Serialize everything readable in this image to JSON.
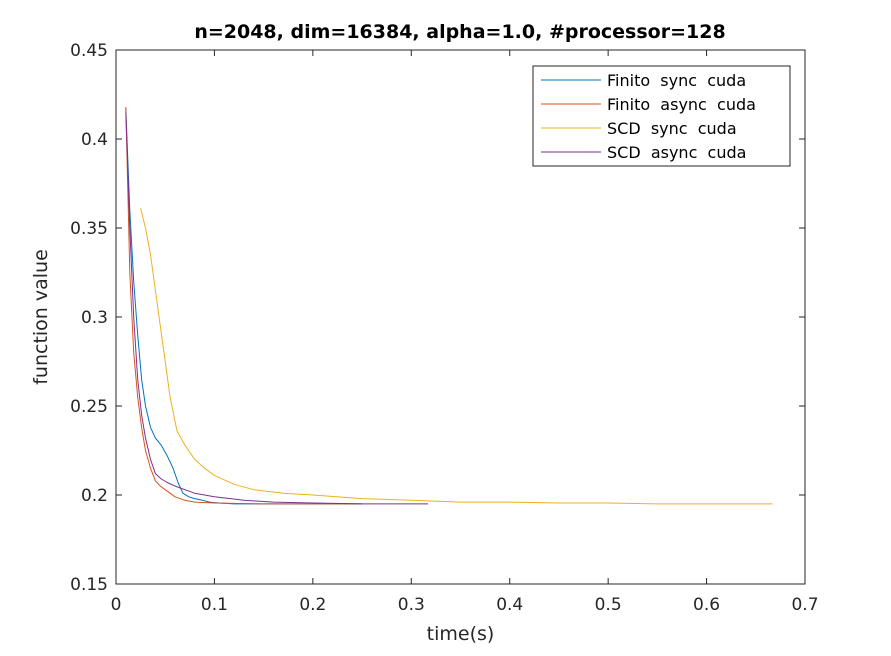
{
  "chart_data": {
    "type": "line",
    "title": "n=2048, dim=16384, alpha=1.0, #processor=128",
    "xlabel": "time(s)",
    "ylabel": "function value",
    "xlim": [
      0,
      0.7
    ],
    "ylim": [
      0.15,
      0.45
    ],
    "xticks": [
      0,
      0.1,
      0.2,
      0.3,
      0.4,
      0.5,
      0.6,
      0.7
    ],
    "xtick_labels": [
      "0",
      "0.1",
      "0.2",
      "0.3",
      "0.4",
      "0.5",
      "0.6",
      "0.7"
    ],
    "yticks": [
      0.15,
      0.2,
      0.25,
      0.3,
      0.35,
      0.4,
      0.45
    ],
    "ytick_labels": [
      "0.15",
      "0.2",
      "0.25",
      "0.3",
      "0.35",
      "0.4",
      "0.45"
    ],
    "grid": false,
    "legend_position": "top-right",
    "series": [
      {
        "name": "Finito  sync  cuda",
        "color": "#0072bd",
        "x": [
          0.01,
          0.014,
          0.018,
          0.022,
          0.026,
          0.03,
          0.035,
          0.04,
          0.046,
          0.052,
          0.058,
          0.063,
          0.068,
          0.074,
          0.08,
          0.088,
          0.095,
          0.105,
          0.12,
          0.15,
          0.2,
          0.25
        ],
        "y": [
          0.417,
          0.36,
          0.32,
          0.29,
          0.265,
          0.25,
          0.238,
          0.232,
          0.228,
          0.222,
          0.215,
          0.207,
          0.201,
          0.199,
          0.198,
          0.197,
          0.196,
          0.1955,
          0.195,
          0.195,
          0.195,
          0.195
        ]
      },
      {
        "name": "Finito  async  cuda",
        "color": "#d95319",
        "x": [
          0.01,
          0.014,
          0.018,
          0.022,
          0.026,
          0.03,
          0.035,
          0.04,
          0.045,
          0.05,
          0.06,
          0.07,
          0.08,
          0.1,
          0.15,
          0.2,
          0.25
        ],
        "y": [
          0.418,
          0.325,
          0.28,
          0.255,
          0.238,
          0.225,
          0.215,
          0.208,
          0.205,
          0.203,
          0.199,
          0.197,
          0.196,
          0.1955,
          0.195,
          0.195,
          0.195
        ]
      },
      {
        "name": "SCD  sync  cuda",
        "color": "#edb120",
        "x": [
          0.025,
          0.03,
          0.035,
          0.04,
          0.045,
          0.05,
          0.055,
          0.062,
          0.07,
          0.08,
          0.09,
          0.1,
          0.12,
          0.14,
          0.17,
          0.2,
          0.25,
          0.3,
          0.35,
          0.4,
          0.45,
          0.5,
          0.55,
          0.6,
          0.667
        ],
        "y": [
          0.361,
          0.35,
          0.335,
          0.315,
          0.295,
          0.275,
          0.255,
          0.236,
          0.228,
          0.22,
          0.215,
          0.211,
          0.206,
          0.203,
          0.201,
          0.2,
          0.198,
          0.197,
          0.196,
          0.196,
          0.1955,
          0.1955,
          0.195,
          0.195,
          0.195
        ]
      },
      {
        "name": "SCD  async  cuda",
        "color": "#7e2f8e",
        "x": [
          0.01,
          0.014,
          0.018,
          0.022,
          0.026,
          0.03,
          0.035,
          0.04,
          0.046,
          0.052,
          0.06,
          0.07,
          0.08,
          0.1,
          0.13,
          0.16,
          0.2,
          0.25,
          0.3,
          0.317
        ],
        "y": [
          0.415,
          0.35,
          0.3,
          0.265,
          0.245,
          0.232,
          0.22,
          0.212,
          0.209,
          0.207,
          0.205,
          0.203,
          0.201,
          0.199,
          0.197,
          0.196,
          0.1955,
          0.195,
          0.195,
          0.195
        ]
      }
    ]
  }
}
